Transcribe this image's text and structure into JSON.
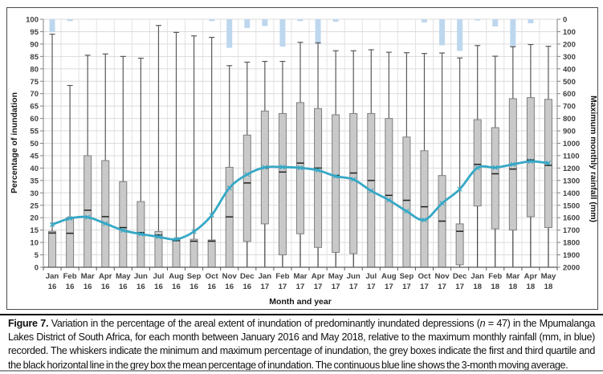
{
  "caption": {
    "label": "Figure 7.",
    "part1": " Variation in the percentage of the areal extent of inundation of predominantly inundated depressions (",
    "n": "n",
    "part2": " = 47) in the Mpumalanga Lakes District of South Africa, for each month between January 2016 and May 2018, relative to the maximum monthly rainfall (mm, in blue) recorded. The whiskers indicate the minimum and maximum percentage of inundation, the grey boxes indicate the first and third quartile and the black horizontal line in the grey box the mean percentage of inundation. The continuous blue line shows the 3-month moving average."
  },
  "colors": {
    "grid_h": "#dbdbdb",
    "grid_v": "#e3e3e3",
    "axis_line": "#808080",
    "x_axis_line": "#595959",
    "whisker": "#595959",
    "whisker_low": "#1a1a1a",
    "box_fill": "#c9c9c9",
    "box_border": "#7f7f7f",
    "mean_line": "#1f1f1f",
    "rain_bar": "#bdd7ee",
    "avg_line": "#35a8c6",
    "frame": "#4a4a4a"
  },
  "chart_data": {
    "type": "box-whisker with inverted rainfall bars and moving-average line",
    "left_axis": {
      "title": "Percentage of inundation",
      "min": 0,
      "max": 100,
      "step": 5
    },
    "right_axis": {
      "title": "Maximum monthly rainfall (mm)",
      "min": 0,
      "max": 2000,
      "step": 100,
      "inverted_from_top": true
    },
    "x_axis": {
      "title": "Month and year"
    },
    "grid": "on",
    "columns": [
      {
        "month": "Jan",
        "year": "16",
        "min": 0,
        "q1": 0,
        "mean": 13.8,
        "q3": 14.5,
        "max": 94.0,
        "rain_mm": 105,
        "moving_avg": 17.2
      },
      {
        "month": "Feb",
        "year": "16",
        "min": 0,
        "q1": 0,
        "mean": 13.7,
        "q3": 20.0,
        "max": 73.3,
        "rain_mm": 15,
        "moving_avg": 19.7
      },
      {
        "month": "Mar",
        "year": "16",
        "min": 0,
        "q1": 0,
        "mean": 23.0,
        "q3": 45.0,
        "max": 85.5,
        "rain_mm": 0,
        "moving_avg": 20.2
      },
      {
        "month": "Apr",
        "year": "16",
        "min": 0,
        "q1": 0,
        "mean": 20.4,
        "q3": 43.0,
        "max": 86.0,
        "rain_mm": 0,
        "moving_avg": 17.6
      },
      {
        "month": "May",
        "year": "16",
        "min": 0,
        "q1": 0,
        "mean": 16.0,
        "q3": 34.5,
        "max": 85.0,
        "rain_mm": 0,
        "moving_avg": 14.9
      },
      {
        "month": "Jun",
        "year": "16",
        "min": 0,
        "q1": 0,
        "mean": 14.0,
        "q3": 26.5,
        "max": 84.3,
        "rain_mm": 0,
        "moving_avg": 13.4
      },
      {
        "month": "Jul",
        "year": "16",
        "min": 0,
        "q1": 0,
        "mean": 13.0,
        "q3": 14.4,
        "max": 97.5,
        "rain_mm": 0,
        "moving_avg": 12.3
      },
      {
        "month": "Aug",
        "year": "16",
        "min": 0,
        "q1": 0,
        "mean": 10.7,
        "q3": 11.2,
        "max": 94.7,
        "rain_mm": 0,
        "moving_avg": 11.3
      },
      {
        "month": "Sep",
        "year": "16",
        "min": 0,
        "q1": 0,
        "mean": 10.5,
        "q3": 11.3,
        "max": 93.3,
        "rain_mm": 0,
        "moving_avg": 14.4
      },
      {
        "month": "Oct",
        "year": "16",
        "min": 0,
        "q1": 0,
        "mean": 10.5,
        "q3": 11.0,
        "max": 92.7,
        "rain_mm": 15,
        "moving_avg": 21.0
      },
      {
        "month": "Nov",
        "year": "16",
        "min": 0,
        "q1": 0,
        "mean": 20.3,
        "q3": 40.3,
        "max": 81.3,
        "rain_mm": 230,
        "moving_avg": 32.0
      },
      {
        "month": "Dec",
        "year": "16",
        "min": 0,
        "q1": 10.4,
        "mean": 34.0,
        "q3": 53.3,
        "max": 82.7,
        "rain_mm": 70,
        "moving_avg": 37.4
      },
      {
        "month": "Jan",
        "year": "17",
        "min": 0,
        "q1": 17.5,
        "mean": 40.1,
        "q3": 63.0,
        "max": 83.0,
        "rain_mm": 55,
        "moving_avg": 40.3
      },
      {
        "month": "Feb",
        "year": "17",
        "min": 0,
        "q1": 5.0,
        "mean": 38.4,
        "q3": 62.0,
        "max": 83.0,
        "rain_mm": 220,
        "moving_avg": 40.4
      },
      {
        "month": "Mar",
        "year": "17",
        "min": 0,
        "q1": 13.5,
        "mean": 42.0,
        "q3": 66.4,
        "max": 90.7,
        "rain_mm": 15,
        "moving_avg": 40.1
      },
      {
        "month": "Apr",
        "year": "17",
        "min": 0,
        "q1": 8.0,
        "mean": 40.0,
        "q3": 64.0,
        "max": 90.5,
        "rain_mm": 200,
        "moving_avg": 39.1
      },
      {
        "month": "May",
        "year": "17",
        "min": 0,
        "q1": 6.0,
        "mean": 37.0,
        "q3": 61.5,
        "max": 87.3,
        "rain_mm": 20,
        "moving_avg": 36.7
      },
      {
        "month": "Jun",
        "year": "17",
        "min": 0,
        "q1": 5.5,
        "mean": 38.0,
        "q3": 62.0,
        "max": 87.3,
        "rain_mm": 0,
        "moving_avg": 35.4
      },
      {
        "month": "Jul",
        "year": "17",
        "min": 0,
        "q1": 0,
        "mean": 35.0,
        "q3": 62.0,
        "max": 87.7,
        "rain_mm": 0,
        "moving_avg": 30.8
      },
      {
        "month": "Aug",
        "year": "17",
        "min": 0,
        "q1": 0,
        "mean": 29.0,
        "q3": 60.0,
        "max": 86.7,
        "rain_mm": 0,
        "moving_avg": 27.1
      },
      {
        "month": "Sep",
        "year": "17",
        "min": 0,
        "q1": 0,
        "mean": 27.0,
        "q3": 52.5,
        "max": 86.5,
        "rain_mm": 0,
        "moving_avg": 22.6
      },
      {
        "month": "Oct",
        "year": "17",
        "min": 0,
        "q1": 0,
        "mean": 24.4,
        "q3": 47.0,
        "max": 86.2,
        "rain_mm": 25,
        "moving_avg": 19.1
      },
      {
        "month": "Nov",
        "year": "17",
        "min": 0,
        "q1": 0,
        "mean": 18.6,
        "q3": 37.0,
        "max": 86.4,
        "rain_mm": 210,
        "moving_avg": 25.8
      },
      {
        "month": "Dec",
        "year": "17",
        "min": 0,
        "q1": 1.0,
        "mean": 14.5,
        "q3": 17.5,
        "max": 84.4,
        "rain_mm": 255,
        "moving_avg": 31.5
      },
      {
        "month": "Jan",
        "year": "18",
        "min": 0,
        "q1": 24.7,
        "mean": 41.5,
        "q3": 59.5,
        "max": 89.4,
        "rain_mm": 10,
        "moving_avg": 40.1
      },
      {
        "month": "Feb",
        "year": "18",
        "min": 0,
        "q1": 15.5,
        "mean": 37.7,
        "q3": 56.3,
        "max": 85.1,
        "rain_mm": 58,
        "moving_avg": 40.2
      },
      {
        "month": "Mar",
        "year": "18",
        "min": 0,
        "q1": 15.0,
        "mean": 39.6,
        "q3": 68.0,
        "max": 88.9,
        "rain_mm": 220,
        "moving_avg": 41.5
      },
      {
        "month": "Apr",
        "year": "18",
        "min": 0,
        "q1": 20.4,
        "mean": 43.3,
        "q3": 68.4,
        "max": 89.8,
        "rain_mm": 33,
        "moving_avg": 42.7
      },
      {
        "month": "May",
        "year": "18",
        "min": 0,
        "q1": 16.0,
        "mean": 41.1,
        "q3": 67.7,
        "max": 89.1,
        "rain_mm": 0,
        "moving_avg": 42.0
      }
    ]
  }
}
